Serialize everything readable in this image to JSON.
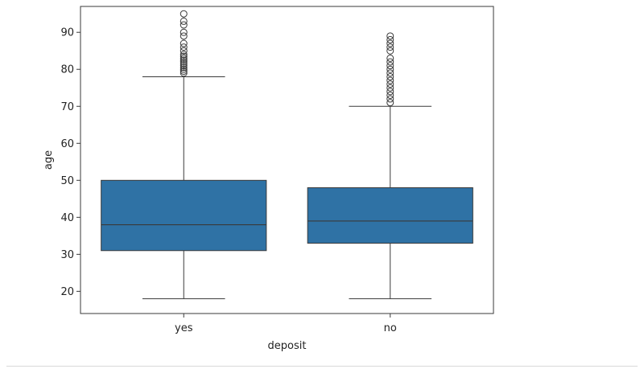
{
  "chart_data": {
    "type": "box",
    "xlabel": "deposit",
    "ylabel": "age",
    "ylim": [
      14,
      97
    ],
    "yticks": [
      20,
      30,
      40,
      50,
      60,
      70,
      80,
      90
    ],
    "categories": [
      "yes",
      "no"
    ],
    "box_color": "#2f72a5",
    "line_color": "#3a3a3a",
    "boxes": [
      {
        "category": "yes",
        "whisker_low": 18,
        "q1": 31,
        "median": 38,
        "q3": 50,
        "whisker_high": 78,
        "outliers": [
          79,
          79.5,
          80,
          80.5,
          81,
          81.5,
          82,
          82.5,
          83,
          83.5,
          84,
          85,
          86,
          87,
          89,
          90,
          92,
          93,
          95
        ]
      },
      {
        "category": "no",
        "whisker_low": 18,
        "q1": 33,
        "median": 39,
        "q3": 48,
        "whisker_high": 70,
        "outliers": [
          71,
          72,
          73,
          74,
          75,
          76,
          77,
          78,
          79,
          80,
          81,
          82,
          83,
          85,
          86,
          87,
          88,
          89
        ]
      }
    ]
  }
}
